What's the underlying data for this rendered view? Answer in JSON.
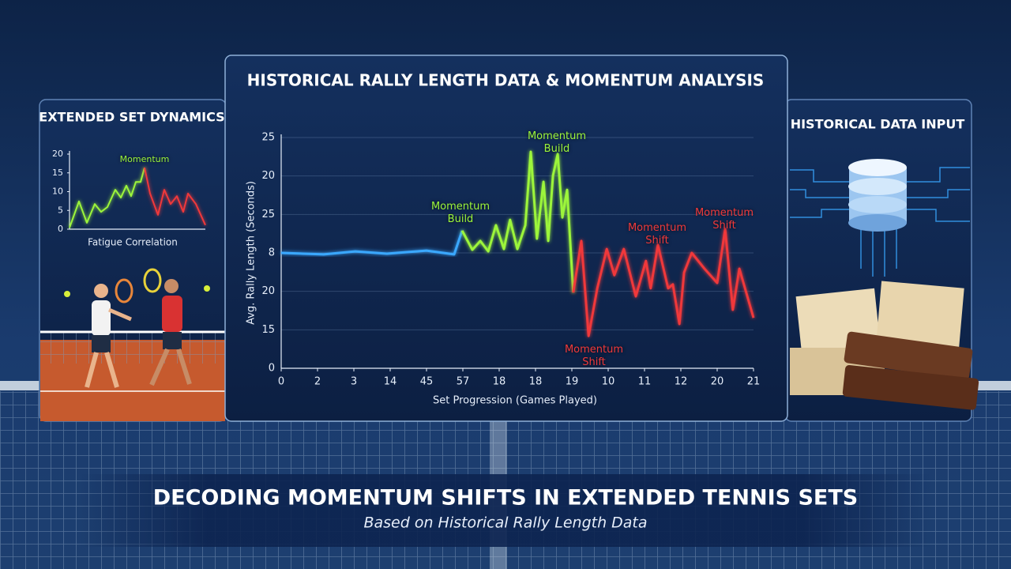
{
  "title": "DECODING MOMENTUM SHIFTS IN EXTENDED TENNIS SETS",
  "subtitle": "Based on Historical Rally Length Data",
  "left_panel": {
    "title": "EXTENDED SET DYNAMICS"
  },
  "right_panel": {
    "title": "HISTORICAL DATA INPUT"
  },
  "chart_data": [
    {
      "type": "line",
      "title": "HISTORICAL RALLY LENGTH DATA & MOMENTUM ANALYSIS",
      "x_label": "Set Progression (Games Played)",
      "y_label": "Avg. Rally Length (Seconds)",
      "xlim": [
        0,
        13
      ],
      "ylim": [
        0,
        6
      ],
      "grid": true,
      "xticks": [
        0,
        {
          "value": 1,
          "label": "2"
        },
        {
          "value": 2,
          "label": "3"
        },
        {
          "value": 3,
          "label": "14"
        },
        {
          "value": 4,
          "label": "45"
        },
        {
          "value": 5,
          "label": "57"
        },
        {
          "value": 6,
          "label": "18"
        },
        {
          "value": 7,
          "label": "18"
        },
        {
          "value": 8,
          "label": "19"
        },
        {
          "value": 9,
          "label": "10"
        },
        {
          "value": 10,
          "label": "11"
        },
        {
          "value": 11,
          "label": "12"
        },
        {
          "value": 12,
          "label": "20"
        },
        {
          "value": 13,
          "label": "21"
        }
      ],
      "yticks": [
        0,
        {
          "value": 1,
          "label": "15"
        },
        {
          "value": 2,
          "label": "20"
        },
        {
          "value": 3,
          "label": "8"
        },
        {
          "value": 4,
          "label": "25"
        },
        {
          "value": 5,
          "label": "20"
        },
        {
          "value": 6,
          "label": "25"
        }
      ],
      "series": [
        {
          "color": "#3aa8ff",
          "x": [
            0,
            1.17,
            2.04,
            2.91,
            4.0,
            4.76,
            4.98
          ],
          "values": [
            3.0,
            2.96,
            3.04,
            2.98,
            3.06,
            2.96,
            3.58
          ]
        },
        {
          "color": "#9cf53a",
          "x": [
            4.98,
            5.26,
            5.48,
            5.7,
            5.91,
            6.13,
            6.3,
            6.5,
            6.72,
            6.87,
            7.04,
            7.22,
            7.35,
            7.48,
            7.61,
            7.74,
            7.87,
            8.04
          ],
          "values": [
            3.58,
            3.08,
            3.31,
            3.04,
            3.72,
            3.1,
            3.86,
            3.1,
            3.72,
            5.63,
            3.37,
            4.85,
            3.31,
            5.01,
            5.57,
            3.92,
            4.64,
            1.97
          ]
        },
        {
          "color": "#f0393a",
          "x": [
            8.04,
            8.26,
            8.46,
            8.7,
            8.96,
            9.17,
            9.43,
            9.76,
            10.04,
            10.17,
            10.37,
            10.65,
            10.78,
            10.96,
            11.09,
            11.3,
            11.65,
            12.0,
            12.22,
            12.43,
            12.61,
            13.0
          ],
          "values": [
            1.97,
            3.31,
            0.84,
            2.08,
            3.1,
            2.42,
            3.1,
            1.87,
            2.79,
            2.08,
            3.21,
            2.08,
            2.18,
            1.15,
            2.49,
            3.0,
            2.59,
            2.22,
            3.62,
            1.52,
            2.59,
            1.31
          ]
        }
      ],
      "annotations": [
        {
          "text": "Momentum Build",
          "color": "#9cf53a"
        },
        {
          "text": "Momentum Build",
          "color": "#9cf53a"
        },
        {
          "text": "Momentum Shift",
          "color": "#f0393a"
        },
        {
          "text": "Momentum Shift",
          "color": "#f0393a"
        },
        {
          "text": "Momentum Shift",
          "color": "#f0393a"
        }
      ]
    },
    {
      "type": "line",
      "x_label": "Fatigue Correlation",
      "xlim": [
        0,
        172
      ],
      "ylim": [
        0,
        20
      ],
      "yticks": [
        0,
        5,
        10,
        15,
        20
      ],
      "series": [
        {
          "color": "#9cf53a",
          "x": [
            0,
            12,
            22,
            32,
            40,
            48,
            58,
            65,
            72,
            78,
            84,
            90,
            95
          ],
          "values": [
            0.4,
            7.4,
            1.7,
            6.7,
            4.6,
            5.9,
            10.5,
            8.4,
            11.6,
            8.8,
            12.6,
            12.6,
            16.4
          ]
        },
        {
          "color": "#f0393a",
          "x": [
            95,
            102,
            112,
            120,
            128,
            136,
            144,
            150,
            160,
            172
          ],
          "values": [
            16.4,
            9.5,
            3.8,
            10.5,
            6.7,
            8.8,
            4.6,
            9.5,
            6.7,
            1.1
          ]
        }
      ],
      "annotations": [
        {
          "text": "Momentum",
          "color": "#9cf53a"
        }
      ]
    }
  ]
}
